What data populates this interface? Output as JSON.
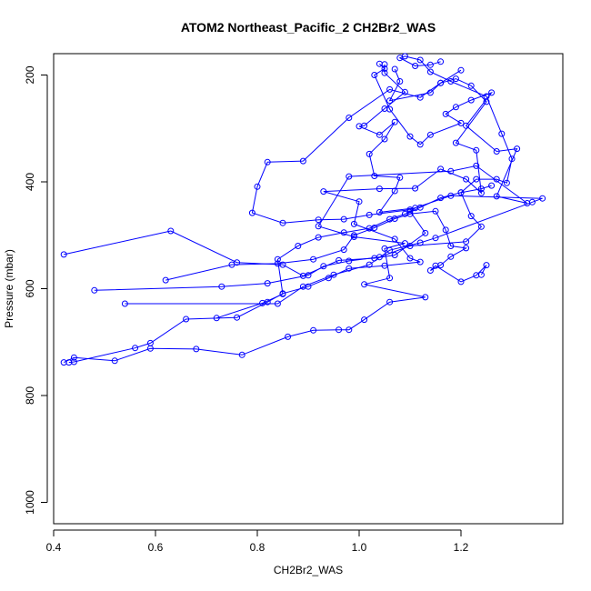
{
  "chart_data": {
    "type": "scatter",
    "title": "ATOM2 Northeast_Pacific_2 CH2Br2_WAS",
    "xlabel": "CH2Br2_WAS",
    "ylabel": "Pressure (mbar)",
    "xlim": [
      0.4,
      1.4
    ],
    "ylim": [
      1040,
      160
    ],
    "y_reversed": true,
    "grid": false,
    "legend": "none",
    "x_ticks": [
      0.4,
      0.6,
      0.8,
      1.0,
      1.2
    ],
    "x_tick_labels": [
      "0.4",
      "0.6",
      "0.8",
      "1.0",
      "1.2"
    ],
    "y_ticks": [
      200,
      400,
      600,
      800,
      1000
    ],
    "y_tick_labels": [
      "200",
      "400",
      "600",
      "800",
      "1000"
    ],
    "line_color": "#0000ff",
    "marker": "open-circle",
    "series": [
      {
        "x": [
          0.42,
          0.44,
          0.52,
          0.59,
          0.68,
          0.77,
          0.86,
          0.91,
          0.96,
          0.98,
          1.01,
          1.06,
          1.13,
          1.01,
          1.06,
          1.05,
          1.09,
          0.99,
          0.92,
          0.98,
          1.18,
          1.23,
          1.33,
          1.27,
          1.31,
          1.27,
          1.21,
          1.26,
          1.22,
          1.19,
          1.17,
          1.2,
          1.14,
          1.12,
          1.1,
          1.06,
          1.03,
          1.05,
          1.04
        ],
        "y": [
          738,
          729,
          735,
          712,
          713,
          724,
          690,
          678,
          677,
          677,
          658,
          625,
          616,
          592,
          580,
          525,
          515,
          503,
          483,
          390,
          380,
          370,
          440,
          427,
          338,
          343,
          295,
          233,
          247,
          260,
          273,
          290,
          312,
          330,
          315,
          264,
          200,
          188,
          179
        ]
      },
      {
        "x": [
          0.43,
          0.44,
          0.56,
          0.59,
          0.66,
          0.76,
          0.82,
          0.85,
          0.9,
          0.94,
          0.98,
          1.05,
          1.12,
          1.1,
          1.07,
          0.99,
          1.0,
          0.93,
          1.04,
          1.11,
          1.16,
          1.21,
          1.24,
          1.23,
          1.19,
          1.25,
          1.22,
          1.19,
          1.16,
          1.14,
          1.06,
          1.08,
          1.07
        ],
        "y": [
          738,
          737,
          711,
          702,
          657,
          654,
          625,
          609,
          596,
          580,
          562,
          557,
          550,
          543,
          507,
          479,
          437,
          418,
          413,
          412,
          376,
          395,
          421,
          341,
          327,
          250,
          220,
          207,
          215,
          233,
          248,
          212,
          189
        ]
      },
      {
        "x": [
          0.42,
          0.63,
          0.76,
          0.85,
          0.89,
          0.96,
          1.03,
          1.07,
          1.13,
          1.1,
          1.11,
          1.04,
          1.07,
          1.08,
          1.03,
          1.02,
          1.05,
          1.07,
          1.04,
          1.0,
          1.01,
          1.05,
          1.09,
          1.05,
          1.05
        ],
        "y": [
          536,
          492,
          551,
          555,
          576,
          547,
          543,
          537,
          496,
          455,
          449,
          457,
          417,
          392,
          389,
          348,
          320,
          288,
          312,
          296,
          295,
          263,
          232,
          196,
          180
        ]
      },
      {
        "x": [
          0.48,
          0.73,
          0.82,
          0.9,
          0.93,
          0.98,
          1.04,
          1.1,
          1.21,
          1.24,
          1.22,
          1.2,
          1.23,
          1.27,
          1.29,
          1.3,
          1.28,
          1.25,
          1.18,
          1.14,
          1.12,
          1.09,
          1.08,
          1.11,
          1.14,
          1.16
        ],
        "y": [
          603,
          596,
          590,
          575,
          558,
          548,
          541,
          520,
          512,
          484,
          464,
          420,
          395,
          395,
          402,
          357,
          310,
          240,
          212,
          194,
          172,
          165,
          168,
          183,
          181,
          175
        ]
      },
      {
        "x": [
          0.54,
          0.84,
          0.89,
          0.95,
          1.02,
          1.06,
          1.12,
          1.15,
          1.34,
          1.36,
          1.18,
          1.1,
          1.02,
          0.97,
          0.92,
          0.85,
          0.79,
          0.8,
          0.82,
          0.89,
          0.98,
          1.06,
          1.12,
          1.16,
          1.2
        ],
        "y": [
          628,
          628,
          596,
          574,
          555,
          528,
          514,
          505,
          438,
          431,
          426,
          452,
          462,
          470,
          471,
          477,
          458,
          409,
          363,
          361,
          280,
          227,
          242,
          215,
          191
        ]
      },
      {
        "x": [
          0.62,
          0.75,
          0.84,
          0.91,
          0.97,
          0.99,
          1.03,
          1.07,
          1.1,
          1.15,
          1.17,
          1.18,
          1.21,
          1.18,
          1.16,
          1.14,
          1.15,
          1.2,
          1.23,
          1.25,
          1.24
        ],
        "y": [
          584,
          555,
          553,
          545,
          527,
          500,
          486,
          469,
          460,
          455,
          490,
          520,
          524,
          540,
          556,
          566,
          557,
          587,
          575,
          556,
          574
        ]
      },
      {
        "x": [
          0.72,
          0.81,
          0.85,
          0.84,
          0.88,
          0.92,
          0.97,
          1.02,
          1.06,
          1.09,
          1.12,
          1.16,
          1.2,
          1.24,
          1.26
        ],
        "y": [
          655,
          627,
          610,
          545,
          520,
          504,
          495,
          487,
          470,
          460,
          448,
          430,
          420,
          413,
          407
        ]
      }
    ]
  }
}
